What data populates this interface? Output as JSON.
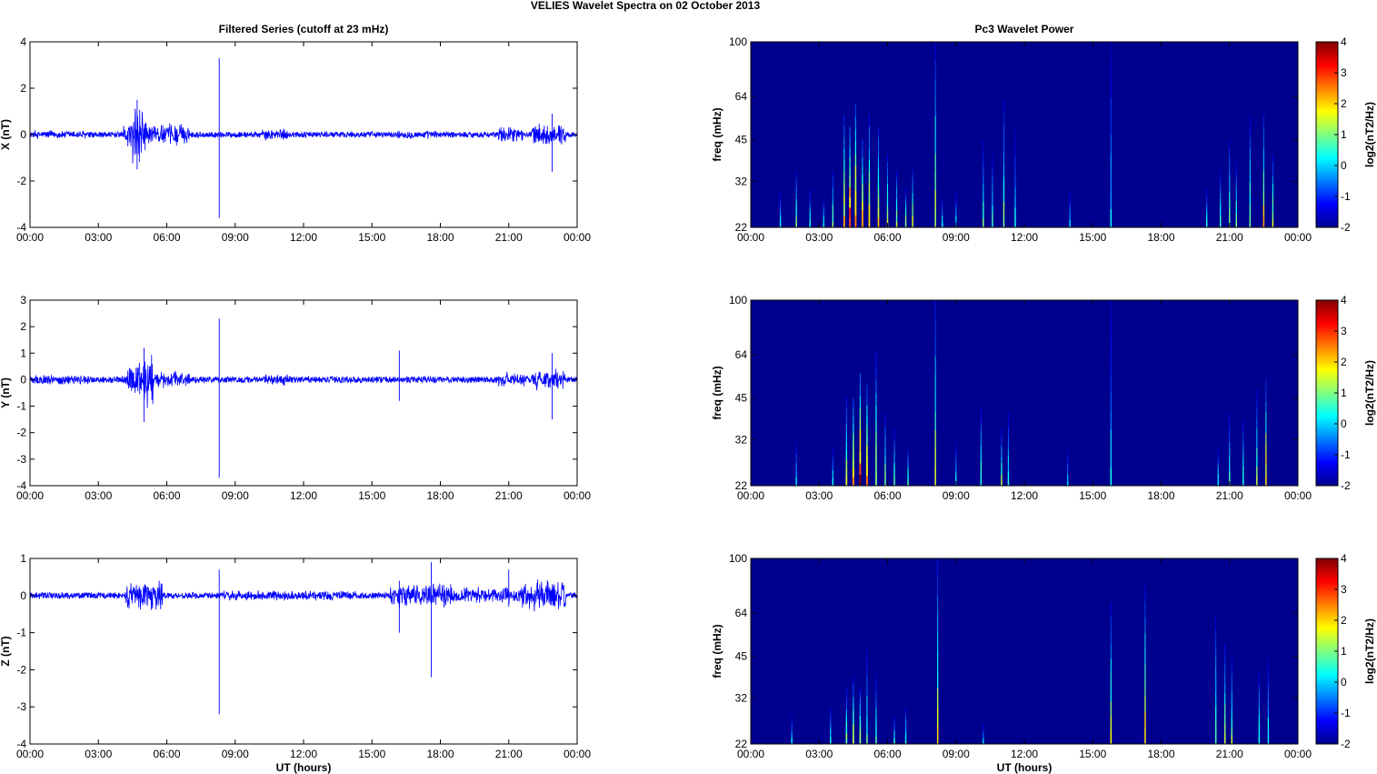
{
  "figure": {
    "title": "VELIES Wavelet Spectra on 02 October   2013",
    "left_title": "Filtered Series (cutoff at 23 mHz)",
    "right_title": "Pc3 Wavelet Power",
    "x_label": "UT (hours)"
  },
  "colors": {
    "series_line": "#0000ff",
    "axis": "#000000",
    "spectrogram_background": "#00008f"
  },
  "chart_data": [
    {
      "type": "line",
      "panel": "X",
      "title": "Filtered Series (cutoff at 23 mHz)",
      "xlabel": "",
      "ylabel": "X (nT)",
      "xlim": [
        0,
        24
      ],
      "ylim": [
        -4,
        4
      ],
      "xticks": [
        "00:00",
        "03:00",
        "06:00",
        "09:00",
        "12:00",
        "15:00",
        "18:00",
        "21:00",
        "00:00"
      ],
      "yticks": [
        -4,
        -2,
        0,
        2,
        4
      ],
      "baseline_amplitude": 0.12,
      "activity": [
        {
          "start": 0.2,
          "end": 2.6,
          "amp": 0.2
        },
        {
          "start": 4.1,
          "end": 4.6,
          "amp": 0.6
        },
        {
          "start": 4.5,
          "end": 5.1,
          "amp": 1.4
        },
        {
          "start": 5.1,
          "end": 7.0,
          "amp": 0.5
        },
        {
          "start": 10.2,
          "end": 11.3,
          "amp": 0.3
        },
        {
          "start": 16.0,
          "end": 18.0,
          "amp": 0.2
        },
        {
          "start": 20.5,
          "end": 21.6,
          "amp": 0.4
        },
        {
          "start": 22.0,
          "end": 23.5,
          "amp": 0.5
        }
      ],
      "spikes": [
        {
          "x": 8.3,
          "ymin": -3.6,
          "ymax": 3.3
        },
        {
          "x": 4.7,
          "ymin": -1.5,
          "ymax": 1.5
        },
        {
          "x": 22.9,
          "ymin": -1.6,
          "ymax": 0.9
        }
      ]
    },
    {
      "type": "line",
      "panel": "Y",
      "title": "",
      "xlabel": "",
      "ylabel": "Y (nT)",
      "xlim": [
        0,
        24
      ],
      "ylim": [
        -4,
        3
      ],
      "xticks": [
        "00:00",
        "03:00",
        "06:00",
        "09:00",
        "12:00",
        "15:00",
        "18:00",
        "21:00",
        "00:00"
      ],
      "yticks": [
        -4,
        -3,
        -2,
        -1,
        0,
        1,
        2,
        3
      ],
      "baseline_amplitude": 0.12,
      "activity": [
        {
          "start": 0.2,
          "end": 2.6,
          "amp": 0.2
        },
        {
          "start": 4.2,
          "end": 4.7,
          "amp": 0.6
        },
        {
          "start": 4.7,
          "end": 5.4,
          "amp": 1.1
        },
        {
          "start": 5.4,
          "end": 7.0,
          "amp": 0.35
        },
        {
          "start": 10.3,
          "end": 11.4,
          "amp": 0.25
        },
        {
          "start": 16.5,
          "end": 18.5,
          "amp": 0.15
        },
        {
          "start": 20.5,
          "end": 21.8,
          "amp": 0.3
        },
        {
          "start": 22.0,
          "end": 23.5,
          "amp": 0.45
        }
      ],
      "spikes": [
        {
          "x": 8.3,
          "ymin": -3.7,
          "ymax": 2.3
        },
        {
          "x": 5.0,
          "ymin": -1.6,
          "ymax": 1.2
        },
        {
          "x": 16.2,
          "ymin": -0.8,
          "ymax": 1.1
        },
        {
          "x": 22.9,
          "ymin": -1.5,
          "ymax": 1.0
        }
      ]
    },
    {
      "type": "line",
      "panel": "Z",
      "title": "",
      "xlabel": "UT (hours)",
      "ylabel": "Z (nT)",
      "xlim": [
        0,
        24
      ],
      "ylim": [
        -4,
        1
      ],
      "xticks": [
        "00:00",
        "03:00",
        "06:00",
        "09:00",
        "12:00",
        "15:00",
        "18:00",
        "21:00",
        "00:00"
      ],
      "yticks": [
        -4,
        -3,
        -2,
        -1,
        0,
        1
      ],
      "baseline_amplitude": 0.08,
      "activity": [
        {
          "start": 0.2,
          "end": 2.6,
          "amp": 0.1
        },
        {
          "start": 4.2,
          "end": 5.8,
          "amp": 0.45
        },
        {
          "start": 8.5,
          "end": 14.5,
          "amp": 0.15
        },
        {
          "start": 15.8,
          "end": 18.5,
          "amp": 0.35
        },
        {
          "start": 18.5,
          "end": 21.5,
          "amp": 0.25
        },
        {
          "start": 21.5,
          "end": 23.5,
          "amp": 0.45
        }
      ],
      "spikes": [
        {
          "x": 8.3,
          "ymin": -3.2,
          "ymax": 0.7
        },
        {
          "x": 16.2,
          "ymin": -1.0,
          "ymax": 0.4
        },
        {
          "x": 17.6,
          "ymin": -2.2,
          "ymax": 0.9
        },
        {
          "x": 21.0,
          "ymin": -0.3,
          "ymax": 0.7
        }
      ]
    },
    {
      "type": "heatmap",
      "panel": "X",
      "title": "Pc3 Wavelet Power",
      "xlabel": "",
      "ylabel": "freq (mHz)",
      "xlim": [
        0,
        24
      ],
      "ylim": [
        22,
        100
      ],
      "yscale": "log",
      "xticks": [
        "00:00",
        "03:00",
        "06:00",
        "09:00",
        "12:00",
        "15:00",
        "18:00",
        "21:00",
        "00:00"
      ],
      "yticks": [
        22,
        32,
        45,
        64,
        100
      ],
      "colorbar_label": "log2(nT2/Hz)",
      "colorbar_ticks": [
        -2,
        -1,
        0,
        1,
        2,
        3,
        4
      ],
      "clim": [
        -2,
        4
      ],
      "features": [
        {
          "x": 1.3,
          "fmax": 30,
          "vmax": 0.5,
          "w": 0.05
        },
        {
          "x": 2.0,
          "fmax": 35,
          "vmax": 1.5,
          "w": 0.06
        },
        {
          "x": 2.6,
          "fmax": 30,
          "vmax": 1.0,
          "w": 0.05
        },
        {
          "x": 3.2,
          "fmax": 28,
          "vmax": 0.8,
          "w": 0.05
        },
        {
          "x": 3.6,
          "fmax": 35,
          "vmax": 1.5,
          "w": 0.05
        },
        {
          "x": 4.1,
          "fmax": 55,
          "vmax": 2.5,
          "w": 0.07
        },
        {
          "x": 4.35,
          "fmax": 50,
          "vmax": 4.0,
          "w": 0.08
        },
        {
          "x": 4.6,
          "fmax": 60,
          "vmax": 3.5,
          "w": 0.08
        },
        {
          "x": 4.9,
          "fmax": 45,
          "vmax": 3.0,
          "w": 0.08
        },
        {
          "x": 5.2,
          "fmax": 55,
          "vmax": 2.5,
          "w": 0.07
        },
        {
          "x": 5.6,
          "fmax": 50,
          "vmax": 2.5,
          "w": 0.07
        },
        {
          "x": 6.0,
          "fmax": 40,
          "vmax": 2.0,
          "w": 0.06
        },
        {
          "x": 6.4,
          "fmax": 35,
          "vmax": 1.8,
          "w": 0.06
        },
        {
          "x": 6.8,
          "fmax": 30,
          "vmax": 2.0,
          "w": 0.06
        },
        {
          "x": 7.1,
          "fmax": 35,
          "vmax": 2.5,
          "w": 0.06
        },
        {
          "x": 8.1,
          "fmax": 100,
          "vmax": 2.0,
          "w": 0.03
        },
        {
          "x": 8.4,
          "fmax": 28,
          "vmax": 0.8,
          "w": 0.05
        },
        {
          "x": 9.0,
          "fmax": 30,
          "vmax": 0.5,
          "w": 0.05
        },
        {
          "x": 10.2,
          "fmax": 45,
          "vmax": 1.2,
          "w": 0.05
        },
        {
          "x": 10.6,
          "fmax": 40,
          "vmax": 1.0,
          "w": 0.05
        },
        {
          "x": 11.1,
          "fmax": 62,
          "vmax": 1.5,
          "w": 0.05
        },
        {
          "x": 11.6,
          "fmax": 50,
          "vmax": 0.5,
          "w": 0.05
        },
        {
          "x": 14.0,
          "fmax": 30,
          "vmax": 0.3,
          "w": 0.05
        },
        {
          "x": 15.8,
          "fmax": 100,
          "vmax": 0.3,
          "w": 0.03
        },
        {
          "x": 20.0,
          "fmax": 30,
          "vmax": 1.0,
          "w": 0.06
        },
        {
          "x": 20.6,
          "fmax": 35,
          "vmax": 1.2,
          "w": 0.05
        },
        {
          "x": 21.0,
          "fmax": 45,
          "vmax": 1.5,
          "w": 0.05
        },
        {
          "x": 21.3,
          "fmax": 38,
          "vmax": 1.5,
          "w": 0.05
        },
        {
          "x": 21.9,
          "fmax": 55,
          "vmax": 1.5,
          "w": 0.05
        },
        {
          "x": 22.5,
          "fmax": 55,
          "vmax": 2.5,
          "w": 0.05
        },
        {
          "x": 22.9,
          "fmax": 40,
          "vmax": 2.0,
          "w": 0.05
        }
      ]
    },
    {
      "type": "heatmap",
      "panel": "Y",
      "title": "",
      "xlabel": "",
      "ylabel": "freq (mHz)",
      "xlim": [
        0,
        24
      ],
      "ylim": [
        22,
        100
      ],
      "yscale": "log",
      "xticks": [
        "00:00",
        "03:00",
        "06:00",
        "09:00",
        "12:00",
        "15:00",
        "18:00",
        "21:00",
        "00:00"
      ],
      "yticks": [
        22,
        32,
        45,
        64,
        100
      ],
      "colorbar_label": "log2(nT2/Hz)",
      "colorbar_ticks": [
        -2,
        -1,
        0,
        1,
        2,
        3,
        4
      ],
      "clim": [
        -2,
        4
      ],
      "features": [
        {
          "x": 2.0,
          "fmax": 32,
          "vmax": 0.5,
          "w": 0.05
        },
        {
          "x": 3.6,
          "fmax": 30,
          "vmax": 0.8,
          "w": 0.05
        },
        {
          "x": 4.2,
          "fmax": 45,
          "vmax": 2.0,
          "w": 0.07
        },
        {
          "x": 4.5,
          "fmax": 45,
          "vmax": 3.0,
          "w": 0.08
        },
        {
          "x": 4.8,
          "fmax": 55,
          "vmax": 4.0,
          "w": 0.08
        },
        {
          "x": 5.1,
          "fmax": 50,
          "vmax": 3.0,
          "w": 0.08
        },
        {
          "x": 5.5,
          "fmax": 65,
          "vmax": 2.0,
          "w": 0.07
        },
        {
          "x": 5.9,
          "fmax": 40,
          "vmax": 1.5,
          "w": 0.06
        },
        {
          "x": 6.3,
          "fmax": 35,
          "vmax": 1.2,
          "w": 0.06
        },
        {
          "x": 6.9,
          "fmax": 30,
          "vmax": 1.5,
          "w": 0.06
        },
        {
          "x": 8.1,
          "fmax": 100,
          "vmax": 2.0,
          "w": 0.03
        },
        {
          "x": 9.0,
          "fmax": 32,
          "vmax": 0.5,
          "w": 0.05
        },
        {
          "x": 10.1,
          "fmax": 42,
          "vmax": 1.2,
          "w": 0.05
        },
        {
          "x": 11.0,
          "fmax": 35,
          "vmax": 1.5,
          "w": 0.06
        },
        {
          "x": 11.3,
          "fmax": 40,
          "vmax": 0.8,
          "w": 0.05
        },
        {
          "x": 13.9,
          "fmax": 30,
          "vmax": 0.3,
          "w": 0.05
        },
        {
          "x": 15.8,
          "fmax": 100,
          "vmax": 0.5,
          "w": 0.03
        },
        {
          "x": 20.5,
          "fmax": 30,
          "vmax": 0.8,
          "w": 0.05
        },
        {
          "x": 21.0,
          "fmax": 40,
          "vmax": 1.0,
          "w": 0.05
        },
        {
          "x": 21.6,
          "fmax": 38,
          "vmax": 1.0,
          "w": 0.05
        },
        {
          "x": 22.2,
          "fmax": 48,
          "vmax": 1.5,
          "w": 0.05
        },
        {
          "x": 22.6,
          "fmax": 52,
          "vmax": 3.0,
          "w": 0.04
        }
      ]
    },
    {
      "type": "heatmap",
      "panel": "Z",
      "title": "",
      "xlabel": "UT (hours)",
      "ylabel": "freq (mHz)",
      "xlim": [
        0,
        24
      ],
      "ylim": [
        22,
        100
      ],
      "yscale": "log",
      "xticks": [
        "00:00",
        "03:00",
        "06:00",
        "09:00",
        "12:00",
        "15:00",
        "18:00",
        "21:00",
        "00:00"
      ],
      "yticks": [
        22,
        32,
        45,
        64,
        100
      ],
      "colorbar_label": "log2(nT2/Hz)",
      "colorbar_ticks": [
        -2,
        -1,
        0,
        1,
        2,
        3,
        4
      ],
      "clim": [
        -2,
        4
      ],
      "features": [
        {
          "x": 1.8,
          "fmax": 28,
          "vmax": 0.5,
          "w": 0.05
        },
        {
          "x": 3.5,
          "fmax": 30,
          "vmax": 0.8,
          "w": 0.05
        },
        {
          "x": 4.2,
          "fmax": 35,
          "vmax": 1.5,
          "w": 0.07
        },
        {
          "x": 4.5,
          "fmax": 38,
          "vmax": 2.0,
          "w": 0.07
        },
        {
          "x": 4.8,
          "fmax": 35,
          "vmax": 1.8,
          "w": 0.07
        },
        {
          "x": 5.1,
          "fmax": 48,
          "vmax": 1.0,
          "w": 0.06
        },
        {
          "x": 5.5,
          "fmax": 40,
          "vmax": 1.0,
          "w": 0.05
        },
        {
          "x": 6.3,
          "fmax": 28,
          "vmax": 0.8,
          "w": 0.05
        },
        {
          "x": 6.8,
          "fmax": 30,
          "vmax": 1.0,
          "w": 0.05
        },
        {
          "x": 8.2,
          "fmax": 100,
          "vmax": 2.0,
          "w": 0.03
        },
        {
          "x": 10.2,
          "fmax": 26,
          "vmax": 0.5,
          "w": 0.05
        },
        {
          "x": 15.8,
          "fmax": 70,
          "vmax": 2.0,
          "w": 0.03
        },
        {
          "x": 17.3,
          "fmax": 80,
          "vmax": 2.5,
          "w": 0.03
        },
        {
          "x": 20.4,
          "fmax": 62,
          "vmax": 1.5,
          "w": 0.05
        },
        {
          "x": 20.8,
          "fmax": 50,
          "vmax": 2.0,
          "w": 0.05
        },
        {
          "x": 21.1,
          "fmax": 45,
          "vmax": 1.5,
          "w": 0.05
        },
        {
          "x": 22.3,
          "fmax": 40,
          "vmax": 1.0,
          "w": 0.05
        },
        {
          "x": 22.7,
          "fmax": 45,
          "vmax": 0.8,
          "w": 0.05
        }
      ]
    }
  ]
}
